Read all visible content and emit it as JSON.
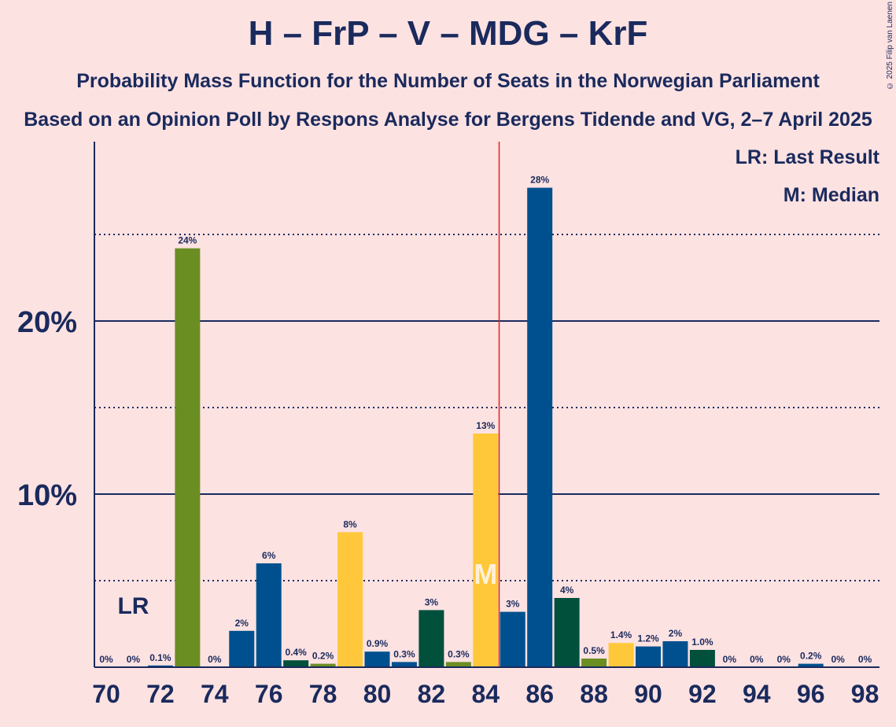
{
  "title": "H – FrP – V – MDG – KrF",
  "subtitle_line1": "Probability Mass Function for the Number of Seats in the Norwegian Parliament",
  "subtitle_line2": "Based on an Opinion Poll by Respons Analyse for Bergens Tidende and VG, 2–7 April 2025",
  "copyright": "© 2025 Filip van Laenen",
  "legend": {
    "last_result": "LR: Last Result",
    "median": "M: Median"
  },
  "colors": {
    "background": "#fde2e2",
    "text": "#1a2a5c",
    "majority_line": "#e0201c",
    "H_blue": "#00508f",
    "V_green": "#6b8e23",
    "KrF_yellow": "#ffc83a",
    "MDG_darkgreen": "#00503c",
    "median_letter": "#fff0d8"
  },
  "chart_data": {
    "type": "bar",
    "x": [
      70,
      71,
      72,
      73,
      74,
      75,
      76,
      77,
      78,
      79,
      80,
      81,
      82,
      83,
      84,
      85,
      86,
      87,
      88,
      89,
      90,
      91,
      92,
      93,
      94,
      95,
      96,
      97,
      98
    ],
    "values": [
      0,
      0,
      0.1,
      24.2,
      0,
      2.1,
      6.0,
      0.4,
      0.2,
      7.8,
      0.9,
      0.3,
      3.3,
      0.3,
      13.5,
      3.2,
      27.7,
      4.0,
      0.5,
      1.4,
      1.2,
      1.5,
      1.0,
      0,
      0,
      0,
      0.2,
      0,
      0
    ],
    "labels": [
      "0%",
      "0%",
      "0.1%",
      "24%",
      "0%",
      "2%",
      "6%",
      "0.4%",
      "0.2%",
      "8%",
      "0.9%",
      "0.3%",
      "3%",
      "0.3%",
      "13%",
      "3%",
      "28%",
      "4%",
      "0.5%",
      "1.4%",
      "1.2%",
      "2%",
      "1.0%",
      "0%",
      "0%",
      "0%",
      "0.2%",
      "0%",
      "0%"
    ],
    "bar_colors": [
      "#00508f",
      "#00508f",
      "#00508f",
      "#6b8e23",
      "#00508f",
      "#00508f",
      "#00508f",
      "#00503c",
      "#6b8e23",
      "#ffc83a",
      "#00508f",
      "#00508f",
      "#00503c",
      "#6b8e23",
      "#ffc83a",
      "#00508f",
      "#00508f",
      "#00503c",
      "#6b8e23",
      "#ffc83a",
      "#00508f",
      "#00508f",
      "#00503c",
      "#00508f",
      "#00508f",
      "#00508f",
      "#00508f",
      "#00508f",
      "#00508f"
    ],
    "x_tick_labels": [
      "70",
      "72",
      "74",
      "76",
      "78",
      "80",
      "82",
      "84",
      "86",
      "88",
      "90",
      "92",
      "94",
      "96",
      "98"
    ],
    "y_tick_labels": [
      "10%",
      "20%"
    ],
    "y_solid_gridlines": [
      10,
      20
    ],
    "y_dotted_gridlines": [
      5,
      15,
      25
    ],
    "ylim": [
      0,
      30
    ],
    "xlim": [
      69.5,
      98.5
    ],
    "last_result_seat": 71,
    "last_result_label": "LR",
    "median_seat": 84,
    "median_label": "M",
    "majority_threshold": 84.5
  }
}
